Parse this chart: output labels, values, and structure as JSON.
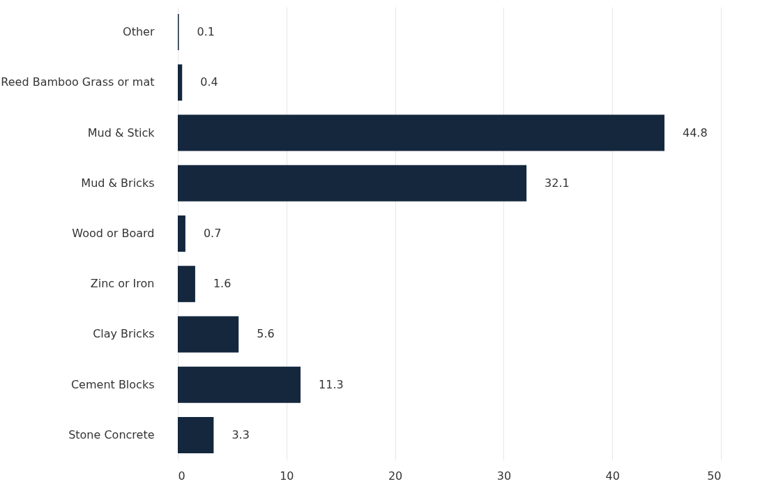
{
  "chart_data": {
    "type": "bar",
    "orientation": "horizontal",
    "categories": [
      "Other",
      "Reed Bamboo Grass or mat",
      "Mud & Stick",
      "Mud & Bricks",
      "Wood or Board",
      "Zinc or Iron",
      "Clay Bricks",
      "Cement Blocks",
      "Stone Concrete"
    ],
    "values": [
      0.1,
      0.4,
      44.8,
      32.1,
      0.7,
      1.6,
      5.6,
      11.3,
      3.3
    ],
    "color": "#14273d",
    "xlim": [
      0,
      50
    ],
    "xticks": [
      0,
      10,
      20,
      30,
      40,
      50
    ],
    "grid": "x",
    "data_labels": true
  }
}
